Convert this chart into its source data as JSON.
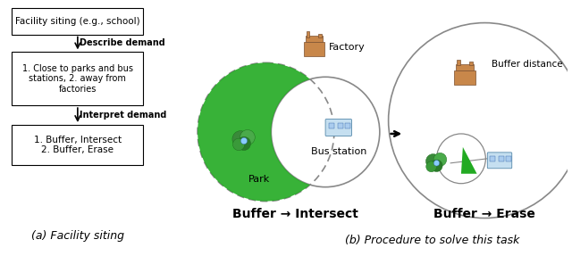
{
  "left_panel": {
    "box1_text": "Facility siting (e.g., school)",
    "arrow1_bold": "Describe demand",
    "box2_text": "1. Close to parks and bus\nstations, 2. away from\nfactories",
    "arrow2_bold": "Interpret demand",
    "box3_text": "1. Buffer, Intersect\n2. Buffer, Erase",
    "caption": "(a) Facility siting"
  },
  "right_panel": {
    "scene1_label": "Buffer → Intersect",
    "scene2_label": "Buffer → Erase",
    "between_arrow": "→",
    "factory_label": "Factory",
    "park_label": "Park",
    "bus_label": "Bus station",
    "buffer_dist_label": "Buffer distance",
    "caption": "(b) Procedure to solve this task"
  },
  "bg_color": "#ffffff",
  "text_color": "#000000",
  "box_edge_color": "#000000",
  "circle_edge_color": "#888888",
  "green_fill": "#22aa22",
  "arrow_color": "#000000"
}
